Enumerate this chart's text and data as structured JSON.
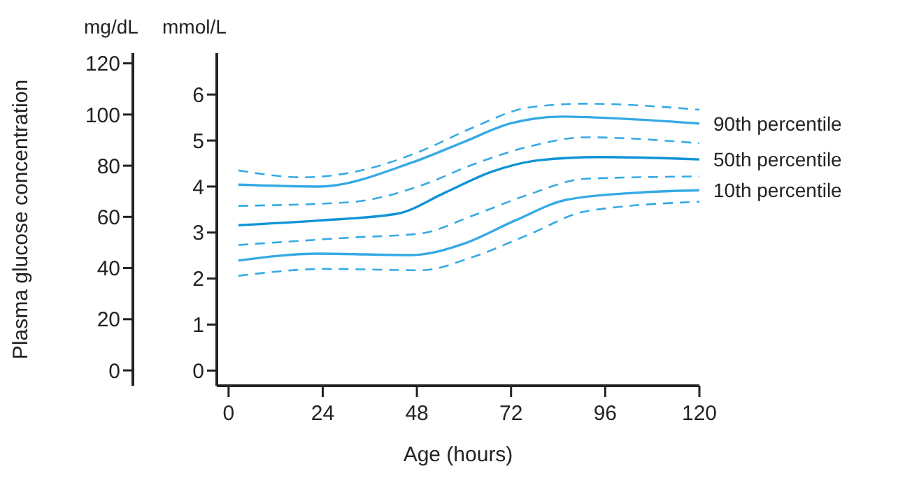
{
  "chart_data": {
    "type": "line",
    "xlabel": "Age (hours)",
    "ylabel": "Plasma glucose concentration",
    "annotations": [
      "mg/dL",
      "mmol/L"
    ],
    "xlim": [
      -3,
      120
    ],
    "xticks": [
      0,
      24,
      48,
      72,
      96,
      120
    ],
    "y2lim": [
      -0.33,
      6.9
    ],
    "y2ticks": [
      0,
      1,
      2,
      3,
      4,
      5,
      6
    ],
    "ylim": [
      -6,
      124
    ],
    "yticks": [
      0,
      20,
      40,
      60,
      80,
      100,
      120
    ],
    "legend": false,
    "grid": false,
    "series": [
      {
        "name": "90th percentile",
        "axis": "y2",
        "color": "#36aae4",
        "line_style": "solid",
        "x": [
          2.5,
          22.8,
          46.7,
          60,
          71.8,
          85,
          96.8,
          120
        ],
        "values": [
          4.04,
          4.0,
          4.52,
          4.97,
          5.37,
          5.52,
          5.49,
          5.37
        ]
      },
      {
        "axis": "y2",
        "color": "#36aae4",
        "line_style": "dashed",
        "x": [
          2.5,
          19,
          34.8,
          49,
          62,
          76.6,
          91,
          120
        ],
        "values": [
          4.35,
          4.2,
          4.37,
          4.77,
          5.27,
          5.72,
          5.8,
          5.67
        ]
      },
      {
        "axis": "y2",
        "color": "#36aae4",
        "line_style": "dashed",
        "x": [
          2.5,
          31,
          49,
          62,
          76.6,
          91,
          120
        ],
        "values": [
          3.58,
          3.66,
          4.02,
          4.47,
          4.87,
          5.07,
          4.94
        ]
      },
      {
        "name": "50th percentile",
        "axis": "y2",
        "color": "#0f94d6",
        "line_style": "solid",
        "x": [
          2.5,
          22.8,
          43,
          55,
          67,
          79,
          94.5,
          120
        ],
        "values": [
          3.16,
          3.26,
          3.41,
          3.86,
          4.32,
          4.57,
          4.64,
          4.59
        ]
      },
      {
        "axis": "y2",
        "color": "#36aae4",
        "line_style": "dashed",
        "x": [
          2.5,
          31,
          49,
          62,
          76.6,
          91,
          120
        ],
        "values": [
          2.73,
          2.89,
          2.98,
          3.36,
          3.83,
          4.17,
          4.22
        ]
      },
      {
        "name": "10th percentile",
        "axis": "y2",
        "color": "#36aae4",
        "line_style": "solid",
        "x": [
          2.5,
          22.8,
          46.7,
          60,
          73,
          86,
          103,
          120
        ],
        "values": [
          2.39,
          2.54,
          2.51,
          2.76,
          3.26,
          3.71,
          3.86,
          3.92
        ]
      },
      {
        "axis": "y2",
        "color": "#36aae4",
        "line_style": "dashed",
        "x": [
          2.5,
          25,
          49,
          62,
          76.6,
          91,
          120
        ],
        "values": [
          2.06,
          2.21,
          2.18,
          2.46,
          2.96,
          3.46,
          3.67
        ]
      }
    ]
  }
}
